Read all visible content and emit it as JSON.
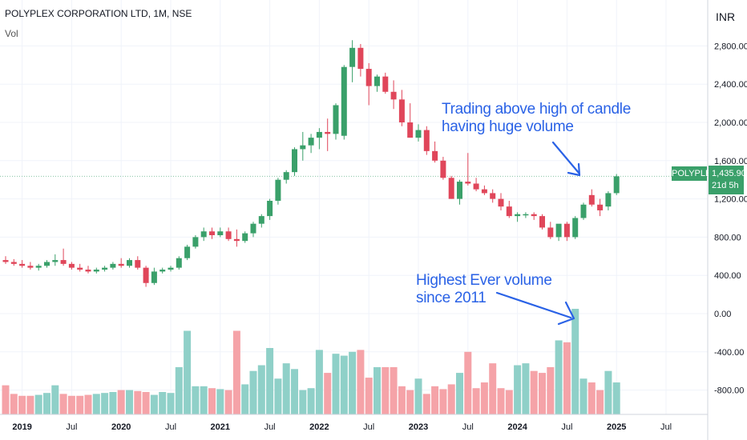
{
  "header": {
    "title": "POLYPLEX CORPORATION LTD, 1M, NSE",
    "volume_label": "Vol",
    "currency": "INR"
  },
  "annotations": {
    "top": [
      "Trading above high of candle",
      "having huge volume"
    ],
    "bottom": [
      "Highest Ever volume",
      "since 2011"
    ]
  },
  "price_tag": {
    "symbol": "POLYPLEX",
    "price": "1,435.90",
    "countdown": "21d 5h"
  },
  "chart_data": {
    "type": "candlestick",
    "interval": "1M",
    "y_axis": {
      "ticks": [
        2800,
        2400,
        2000,
        1600,
        1200,
        800,
        400,
        0,
        -400,
        -800
      ],
      "tick_labels": [
        "2,800.00",
        "2,400.00",
        "2,000.00",
        "1,600.00",
        "1,200.00",
        "800.00",
        "400.00",
        "0.00",
        "-400.00",
        "-800.00"
      ],
      "range": [
        -1050,
        2950
      ]
    },
    "x_axis": {
      "labels": [
        {
          "text": "2019",
          "i": 2,
          "bold": true
        },
        {
          "text": "Jul",
          "i": 8,
          "bold": false
        },
        {
          "text": "2020",
          "i": 14,
          "bold": true
        },
        {
          "text": "Jul",
          "i": 20,
          "bold": false
        },
        {
          "text": "2021",
          "i": 26,
          "bold": true
        },
        {
          "text": "Jul",
          "i": 32,
          "bold": false
        },
        {
          "text": "2022",
          "i": 38,
          "bold": true
        },
        {
          "text": "Jul",
          "i": 44,
          "bold": false
        },
        {
          "text": "2023",
          "i": 50,
          "bold": true
        },
        {
          "text": "Jul",
          "i": 56,
          "bold": false
        },
        {
          "text": "2024",
          "i": 62,
          "bold": true
        },
        {
          "text": "Jul",
          "i": 68,
          "bold": false
        },
        {
          "text": "2025",
          "i": 74,
          "bold": true
        },
        {
          "text": "Jul",
          "i": 80,
          "bold": false
        }
      ]
    },
    "current_price": 1435.9,
    "colors": {
      "up": "#3aa06a",
      "down": "#e0465a",
      "vol_up": "#8fd0c8",
      "vol_down": "#f5a3a8",
      "annotation": "#2a62e6"
    },
    "ohlc": [
      [
        560,
        600,
        520,
        540
      ],
      [
        540,
        570,
        500,
        520
      ],
      [
        520,
        560,
        480,
        500
      ],
      [
        500,
        540,
        460,
        480
      ],
      [
        480,
        520,
        450,
        500
      ],
      [
        500,
        560,
        480,
        540
      ],
      [
        540,
        620,
        500,
        560
      ],
      [
        560,
        680,
        500,
        520
      ],
      [
        520,
        540,
        460,
        480
      ],
      [
        480,
        520,
        440,
        460
      ],
      [
        460,
        500,
        420,
        440
      ],
      [
        440,
        480,
        420,
        460
      ],
      [
        460,
        500,
        440,
        480
      ],
      [
        480,
        540,
        460,
        520
      ],
      [
        520,
        580,
        480,
        500
      ],
      [
        500,
        580,
        480,
        560
      ],
      [
        560,
        600,
        460,
        480
      ],
      [
        480,
        500,
        280,
        320
      ],
      [
        320,
        480,
        300,
        440
      ],
      [
        440,
        480,
        420,
        460
      ],
      [
        460,
        500,
        440,
        480
      ],
      [
        480,
        600,
        460,
        580
      ],
      [
        580,
        720,
        560,
        700
      ],
      [
        700,
        820,
        680,
        800
      ],
      [
        800,
        900,
        760,
        860
      ],
      [
        860,
        900,
        780,
        820
      ],
      [
        820,
        900,
        800,
        860
      ],
      [
        860,
        900,
        760,
        780
      ],
      [
        780,
        880,
        700,
        760
      ],
      [
        760,
        860,
        740,
        840
      ],
      [
        840,
        960,
        800,
        940
      ],
      [
        940,
        1040,
        900,
        1020
      ],
      [
        1020,
        1200,
        980,
        1180
      ],
      [
        1180,
        1420,
        1140,
        1400
      ],
      [
        1400,
        1500,
        1360,
        1480
      ],
      [
        1480,
        1740,
        1440,
        1720
      ],
      [
        1720,
        1900,
        1600,
        1760
      ],
      [
        1760,
        1880,
        1680,
        1840
      ],
      [
        1840,
        1940,
        1720,
        1900
      ],
      [
        1900,
        2040,
        1700,
        1880
      ],
      [
        1880,
        2200,
        1820,
        2180
      ],
      [
        1860,
        2600,
        1820,
        2580
      ],
      [
        2580,
        2860,
        2420,
        2780
      ],
      [
        2780,
        2820,
        2480,
        2560
      ],
      [
        2560,
        2620,
        2180,
        2380
      ],
      [
        2380,
        2500,
        2320,
        2480
      ],
      [
        2480,
        2520,
        2300,
        2320
      ],
      [
        2320,
        2440,
        2140,
        2240
      ],
      [
        2240,
        2340,
        1960,
        2000
      ],
      [
        2000,
        2200,
        1840,
        1840
      ],
      [
        1840,
        1980,
        1800,
        1920
      ],
      [
        1920,
        1960,
        1660,
        1700
      ],
      [
        1700,
        1800,
        1580,
        1600
      ],
      [
        1600,
        1640,
        1400,
        1420
      ],
      [
        1420,
        1440,
        1200,
        1200
      ],
      [
        1200,
        1400,
        1140,
        1380
      ],
      [
        1380,
        1680,
        1340,
        1360
      ],
      [
        1360,
        1420,
        1280,
        1300
      ],
      [
        1300,
        1340,
        1240,
        1260
      ],
      [
        1260,
        1300,
        1160,
        1200
      ],
      [
        1200,
        1260,
        1080,
        1120
      ],
      [
        1120,
        1180,
        1000,
        1020
      ],
      [
        1020,
        1060,
        960,
        1040
      ],
      [
        1040,
        1060,
        1000,
        1040
      ],
      [
        1040,
        1060,
        980,
        1020
      ],
      [
        1020,
        1040,
        880,
        900
      ],
      [
        900,
        960,
        780,
        800
      ],
      [
        800,
        920,
        760,
        940
      ],
      [
        940,
        960,
        760,
        800
      ],
      [
        800,
        1020,
        780,
        1000
      ],
      [
        1000,
        1160,
        980,
        1140
      ],
      [
        1240,
        1300,
        1120,
        1140
      ],
      [
        1140,
        1200,
        1020,
        1080
      ],
      [
        1120,
        1280,
        1080,
        1260
      ],
      [
        1260,
        1460,
        1240,
        1436
      ]
    ],
    "volume": [
      -750,
      -840,
      -860,
      -860,
      -850,
      -830,
      -750,
      -840,
      -860,
      -860,
      -850,
      -840,
      -830,
      -820,
      -800,
      -800,
      -810,
      -820,
      -850,
      -820,
      -830,
      -560,
      -180,
      -760,
      -760,
      -780,
      -790,
      -800,
      -180,
      -740,
      -600,
      -540,
      -360,
      -680,
      -520,
      -580,
      -800,
      -780,
      -380,
      -620,
      -420,
      -440,
      -400,
      -380,
      -670,
      -560,
      -560,
      -560,
      -760,
      -800,
      -680,
      -840,
      -760,
      -790,
      -740,
      -620,
      -400,
      -780,
      -720,
      -520,
      -780,
      -800,
      -540,
      -520,
      -600,
      -620,
      -560,
      -280,
      -300,
      50,
      -680,
      -720,
      -800,
      -600,
      -720
    ]
  }
}
